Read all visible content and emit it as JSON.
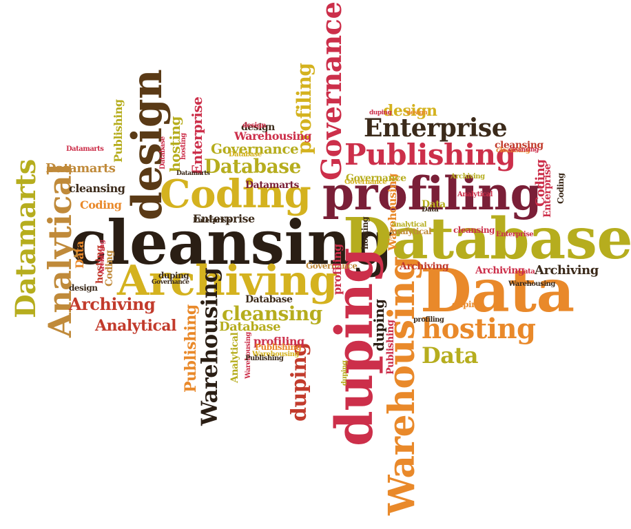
{
  "palette": {
    "black": "#2a1e14",
    "olive": "#b6ad1e",
    "gold": "#d4b21f",
    "orange": "#e9892a",
    "crimson": "#cc2f4a",
    "maroon": "#7a1f37",
    "brown": "#5a3a16",
    "tan": "#c08a3a",
    "red": "#c23b2c",
    "dark": "#3b2a1a"
  },
  "words": [
    {
      "text": "cleansing",
      "color": "black"
    },
    {
      "text": "Database",
      "color": "olive"
    },
    {
      "text": "Data",
      "color": "orange"
    },
    {
      "text": "profiling",
      "color": "maroon"
    },
    {
      "text": "duping",
      "color": "crimson"
    },
    {
      "text": "Warehousing",
      "color": "orange"
    },
    {
      "text": "Archiving",
      "color": "gold"
    },
    {
      "text": "Coding",
      "color": "gold"
    },
    {
      "text": "design",
      "color": "brown"
    },
    {
      "text": "Publishing",
      "color": "crimson"
    },
    {
      "text": "Enterprise",
      "color": "dark"
    },
    {
      "text": "Governance",
      "color": "crimson"
    },
    {
      "text": "hosting",
      "color": "orange"
    },
    {
      "text": "Data",
      "color": "olive"
    },
    {
      "text": "Analytical",
      "color": "tan"
    },
    {
      "text": "Datamarts",
      "color": "olive"
    },
    {
      "text": "Archiving",
      "color": "red"
    },
    {
      "text": "Analytical",
      "color": "red"
    },
    {
      "text": "cleansing",
      "color": "olive"
    },
    {
      "text": "Database",
      "color": "olive"
    },
    {
      "text": "Warehousing",
      "color": "black"
    },
    {
      "text": "Publishing",
      "color": "orange"
    },
    {
      "text": "profiling",
      "color": "gold"
    },
    {
      "text": "Governance",
      "color": "olive"
    },
    {
      "text": "duping",
      "color": "red"
    },
    {
      "text": "design",
      "color": "gold"
    },
    {
      "text": "Enterprise",
      "color": "crimson"
    },
    {
      "text": "Archiving",
      "color": "dark"
    },
    {
      "text": "Database",
      "color": "olive"
    },
    {
      "text": "Coding",
      "color": "orange"
    },
    {
      "text": "Datamarts",
      "color": "tan"
    },
    {
      "text": "cleansing",
      "color": "dark"
    },
    {
      "text": "Warehousing",
      "color": "orange"
    },
    {
      "text": "duping",
      "color": "black"
    },
    {
      "text": "Analytical",
      "color": "olive"
    },
    {
      "text": "hosting",
      "color": "olive"
    },
    {
      "text": "Enterprise",
      "color": "dark"
    },
    {
      "text": "Archiving",
      "color": "red"
    },
    {
      "text": "Data",
      "color": "olive"
    },
    {
      "text": "cleansing",
      "color": "red"
    },
    {
      "text": "Governance",
      "color": "olive"
    },
    {
      "text": "Publishing",
      "color": "olive"
    },
    {
      "text": "Warehousing",
      "color": "crimson"
    },
    {
      "text": "profiling",
      "color": "crimson"
    },
    {
      "text": "Database",
      "color": "dark"
    },
    {
      "text": "Coding",
      "color": "crimson"
    },
    {
      "text": "design",
      "color": "dark"
    },
    {
      "text": "hosting",
      "color": "red"
    },
    {
      "text": "Datamarts",
      "color": "maroon"
    },
    {
      "text": "duping",
      "color": "orange"
    },
    {
      "text": "Publishing",
      "color": "crimson"
    },
    {
      "text": "Enterprise",
      "color": "crimson"
    },
    {
      "text": "Governance",
      "color": "tan"
    },
    {
      "text": "Analytical",
      "color": "tan"
    },
    {
      "text": "Warehousing",
      "color": "crimson"
    },
    {
      "text": "Archiving",
      "color": "crimson"
    },
    {
      "text": "cleansing",
      "color": "crimson"
    },
    {
      "text": "design",
      "color": "dark"
    },
    {
      "text": "Data",
      "color": "orange"
    },
    {
      "text": "Database",
      "color": "gold"
    },
    {
      "text": "Coding",
      "color": "tan"
    },
    {
      "text": "hosting",
      "color": "dark"
    },
    {
      "text": "profiling",
      "color": "crimson"
    },
    {
      "text": "duping",
      "color": "dark"
    },
    {
      "text": "Publishing",
      "color": "orange"
    },
    {
      "text": "Warehousing",
      "color": "gold"
    },
    {
      "text": "Datamarts",
      "color": "crimson"
    },
    {
      "text": "Analytical",
      "color": "olive"
    },
    {
      "text": "Governance",
      "color": "gold"
    },
    {
      "text": "Enterprise",
      "color": "dark"
    },
    {
      "text": "design",
      "color": "crimson"
    },
    {
      "text": "Data",
      "color": "dark"
    },
    {
      "text": "Archiving",
      "color": "crimson"
    },
    {
      "text": "Coding",
      "color": "dark"
    },
    {
      "text": "cleansing",
      "color": "orange"
    },
    {
      "text": "profiling",
      "color": "dark"
    },
    {
      "text": "Database",
      "color": "crimson"
    },
    {
      "text": "duping",
      "color": "olive"
    },
    {
      "text": "hosting",
      "color": "crimson"
    },
    {
      "text": "Enterprise",
      "color": "crimson"
    },
    {
      "text": "Warehousing",
      "color": "dark"
    },
    {
      "text": "Publishing",
      "color": "dark"
    },
    {
      "text": "Datamarts",
      "color": "dark"
    },
    {
      "text": "Analytical",
      "color": "crimson"
    },
    {
      "text": "Governance",
      "color": "dark"
    },
    {
      "text": "design",
      "color": "orange"
    },
    {
      "text": "Data",
      "color": "crimson"
    },
    {
      "text": "Archiving",
      "color": "olive"
    },
    {
      "text": "cleansing",
      "color": "crimson"
    },
    {
      "text": "duping",
      "color": "crimson"
    }
  ]
}
